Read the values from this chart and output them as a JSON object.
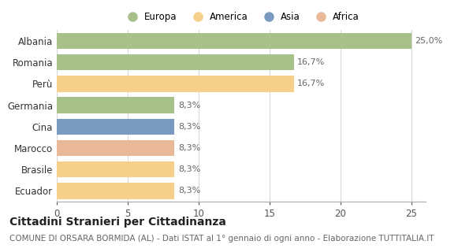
{
  "categories": [
    "Albania",
    "Romania",
    "Perù",
    "Germania",
    "Cina",
    "Marocco",
    "Brasile",
    "Ecuador"
  ],
  "values": [
    25.0,
    16.7,
    16.7,
    8.3,
    8.3,
    8.3,
    8.3,
    8.3
  ],
  "colors": [
    "#a8c08a",
    "#a8c08a",
    "#f5d08a",
    "#a8c08a",
    "#7a9abf",
    "#e8b899",
    "#f5d08a",
    "#f5d08a"
  ],
  "legend_labels": [
    "Europa",
    "America",
    "Asia",
    "Africa"
  ],
  "legend_colors": [
    "#a8c08a",
    "#f5d08a",
    "#7a9abf",
    "#e8b899"
  ],
  "labels": [
    "25,0%",
    "16,7%",
    "16,7%",
    "8,3%",
    "8,3%",
    "8,3%",
    "8,3%",
    "8,3%"
  ],
  "xlim_max": 26,
  "xticks": [
    0,
    5,
    10,
    15,
    20,
    25
  ],
  "title": "Cittadini Stranieri per Cittadinanza",
  "subtitle": "COMUNE DI ORSARA BORMIDA (AL) - Dati ISTAT al 1° gennaio di ogni anno - Elaborazione TUTTITALIA.IT",
  "title_fontsize": 10,
  "subtitle_fontsize": 7.5,
  "bar_height": 0.75,
  "background_color": "#ffffff",
  "grid_color": "#d8d8d8",
  "label_fontsize": 8,
  "ytick_fontsize": 8.5,
  "xtick_fontsize": 8.5
}
